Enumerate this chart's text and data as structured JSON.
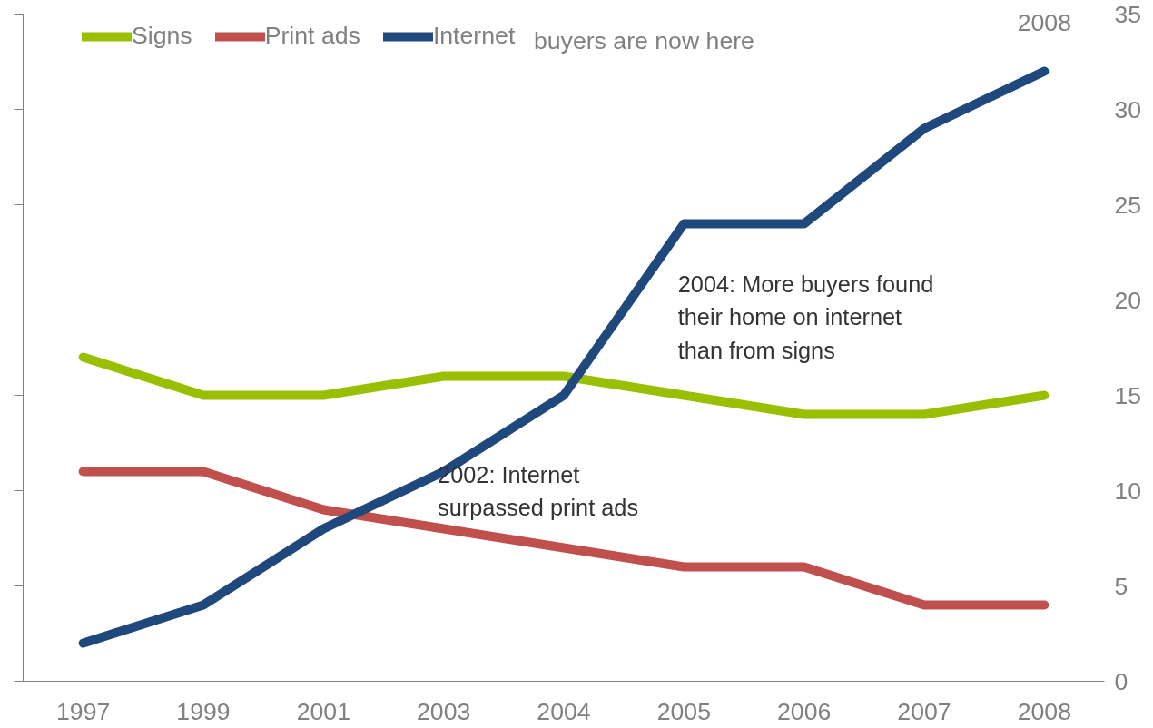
{
  "chart_data": {
    "type": "line",
    "categories": [
      "1997",
      "1999",
      "2001",
      "2003",
      "2004",
      "2005",
      "2006",
      "2007",
      "2008"
    ],
    "series": [
      {
        "name": "Signs",
        "color": "#99c000",
        "values": [
          17,
          15,
          15,
          16,
          16,
          15,
          14,
          14,
          15
        ]
      },
      {
        "name": "Print ads",
        "color": "#c0504d",
        "values": [
          11,
          11,
          9,
          8,
          7,
          6,
          6,
          4,
          4
        ]
      },
      {
        "name": "Internet",
        "color": "#1f497d",
        "values": [
          2,
          4,
          8,
          11,
          15,
          24,
          24,
          29,
          32
        ]
      }
    ],
    "ylim": [
      0,
      35
    ],
    "yticks": [
      0,
      5,
      10,
      15,
      20,
      25,
      30,
      35
    ],
    "grid": false,
    "legend": "top left",
    "marker": "none",
    "line_style": "solid",
    "annotations": [
      "buyers are now here",
      "2008",
      "2004: More buyers found\ntheir home on internet\nthan from signs",
      "2002: Internet\nsurpassed print ads"
    ]
  }
}
